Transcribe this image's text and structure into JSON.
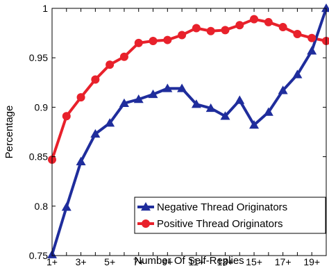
{
  "chart_data": {
    "type": "line",
    "xlabel": "Number Of Self-Replies",
    "ylabel": "Percentage",
    "x": [
      1,
      2,
      3,
      4,
      5,
      6,
      7,
      8,
      9,
      10,
      11,
      12,
      13,
      14,
      15,
      16,
      17,
      18,
      19,
      20
    ],
    "x_tick_values": [
      1,
      3,
      5,
      7,
      9,
      11,
      13,
      15,
      17,
      19
    ],
    "x_tick_labels": [
      "1+",
      "3+",
      "5+",
      "7+",
      "9+",
      "11+",
      "13+",
      "15+",
      "17+",
      "19+"
    ],
    "xlim": [
      1,
      20
    ],
    "y_ticks": [
      0.75,
      0.8,
      0.85,
      0.9,
      0.95,
      1
    ],
    "y_tick_labels": [
      "0.75",
      "0.8",
      "0.85",
      "0.9",
      "0.95",
      "1"
    ],
    "ylim": [
      0.75,
      1
    ],
    "grid": false,
    "legend_position": "bottom-right",
    "series": [
      {
        "name": "Negative Thread Originators",
        "color": "#1f2d9c",
        "marker": "triangle",
        "values": [
          0.751,
          0.799,
          0.845,
          0.873,
          0.884,
          0.904,
          0.908,
          0.913,
          0.919,
          0.919,
          0.903,
          0.899,
          0.891,
          0.907,
          0.882,
          0.895,
          0.917,
          0.933,
          0.957,
          1.0
        ]
      },
      {
        "name": "Positive Thread Originators",
        "color": "#e8212b",
        "marker": "circle",
        "values": [
          0.847,
          0.891,
          0.91,
          0.928,
          0.943,
          0.951,
          0.965,
          0.967,
          0.968,
          0.973,
          0.98,
          0.977,
          0.978,
          0.983,
          0.989,
          0.986,
          0.981,
          0.974,
          0.97,
          0.967
        ]
      }
    ]
  }
}
